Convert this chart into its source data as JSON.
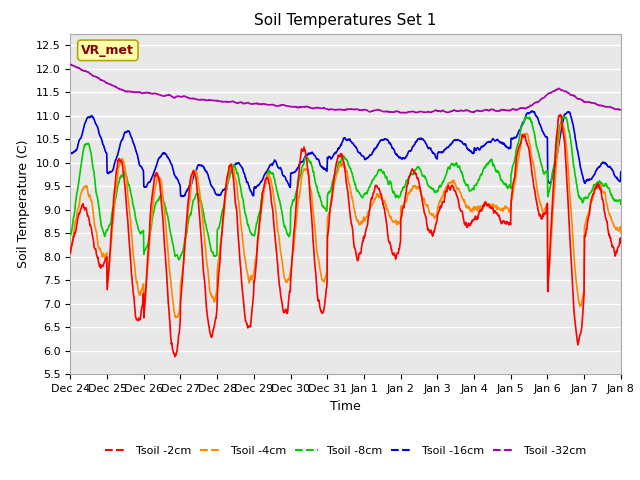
{
  "title": "Soil Temperatures Set 1",
  "xlabel": "Time",
  "ylabel": "Soil Temperature (C)",
  "ylim": [
    5.5,
    12.75
  ],
  "yticks": [
    5.5,
    6.0,
    6.5,
    7.0,
    7.5,
    8.0,
    8.5,
    9.0,
    9.5,
    10.0,
    10.5,
    11.0,
    11.5,
    12.0,
    12.5
  ],
  "xtick_labels": [
    "Dec 24",
    "Dec 25",
    "Dec 26",
    "Dec 27",
    "Dec 28",
    "Dec 29",
    "Dec 30",
    "Dec 31",
    "Jan 1",
    "Jan 2",
    "Jan 3",
    "Jan 4",
    "Jan 5",
    "Jan 6",
    "Jan 7",
    "Jan 8"
  ],
  "series_colors": {
    "Tsoil -2cm": "#ff0000",
    "Tsoil -4cm": "#ff8800",
    "Tsoil -8cm": "#00cc00",
    "Tsoil -16cm": "#0000dd",
    "Tsoil -32cm": "#aa00aa"
  },
  "legend_label": "VR_met",
  "legend_bbox_facecolor": "#ffffaa",
  "legend_text_color": "#880000",
  "legend_edge_color": "#aaaa00",
  "fig_bg_color": "#ffffff",
  "plot_bg_color": "#e8e8e8",
  "grid_color": "#ffffff",
  "title_fontsize": 11,
  "axis_label_fontsize": 9,
  "tick_fontsize": 8,
  "linewidth": 1.2
}
